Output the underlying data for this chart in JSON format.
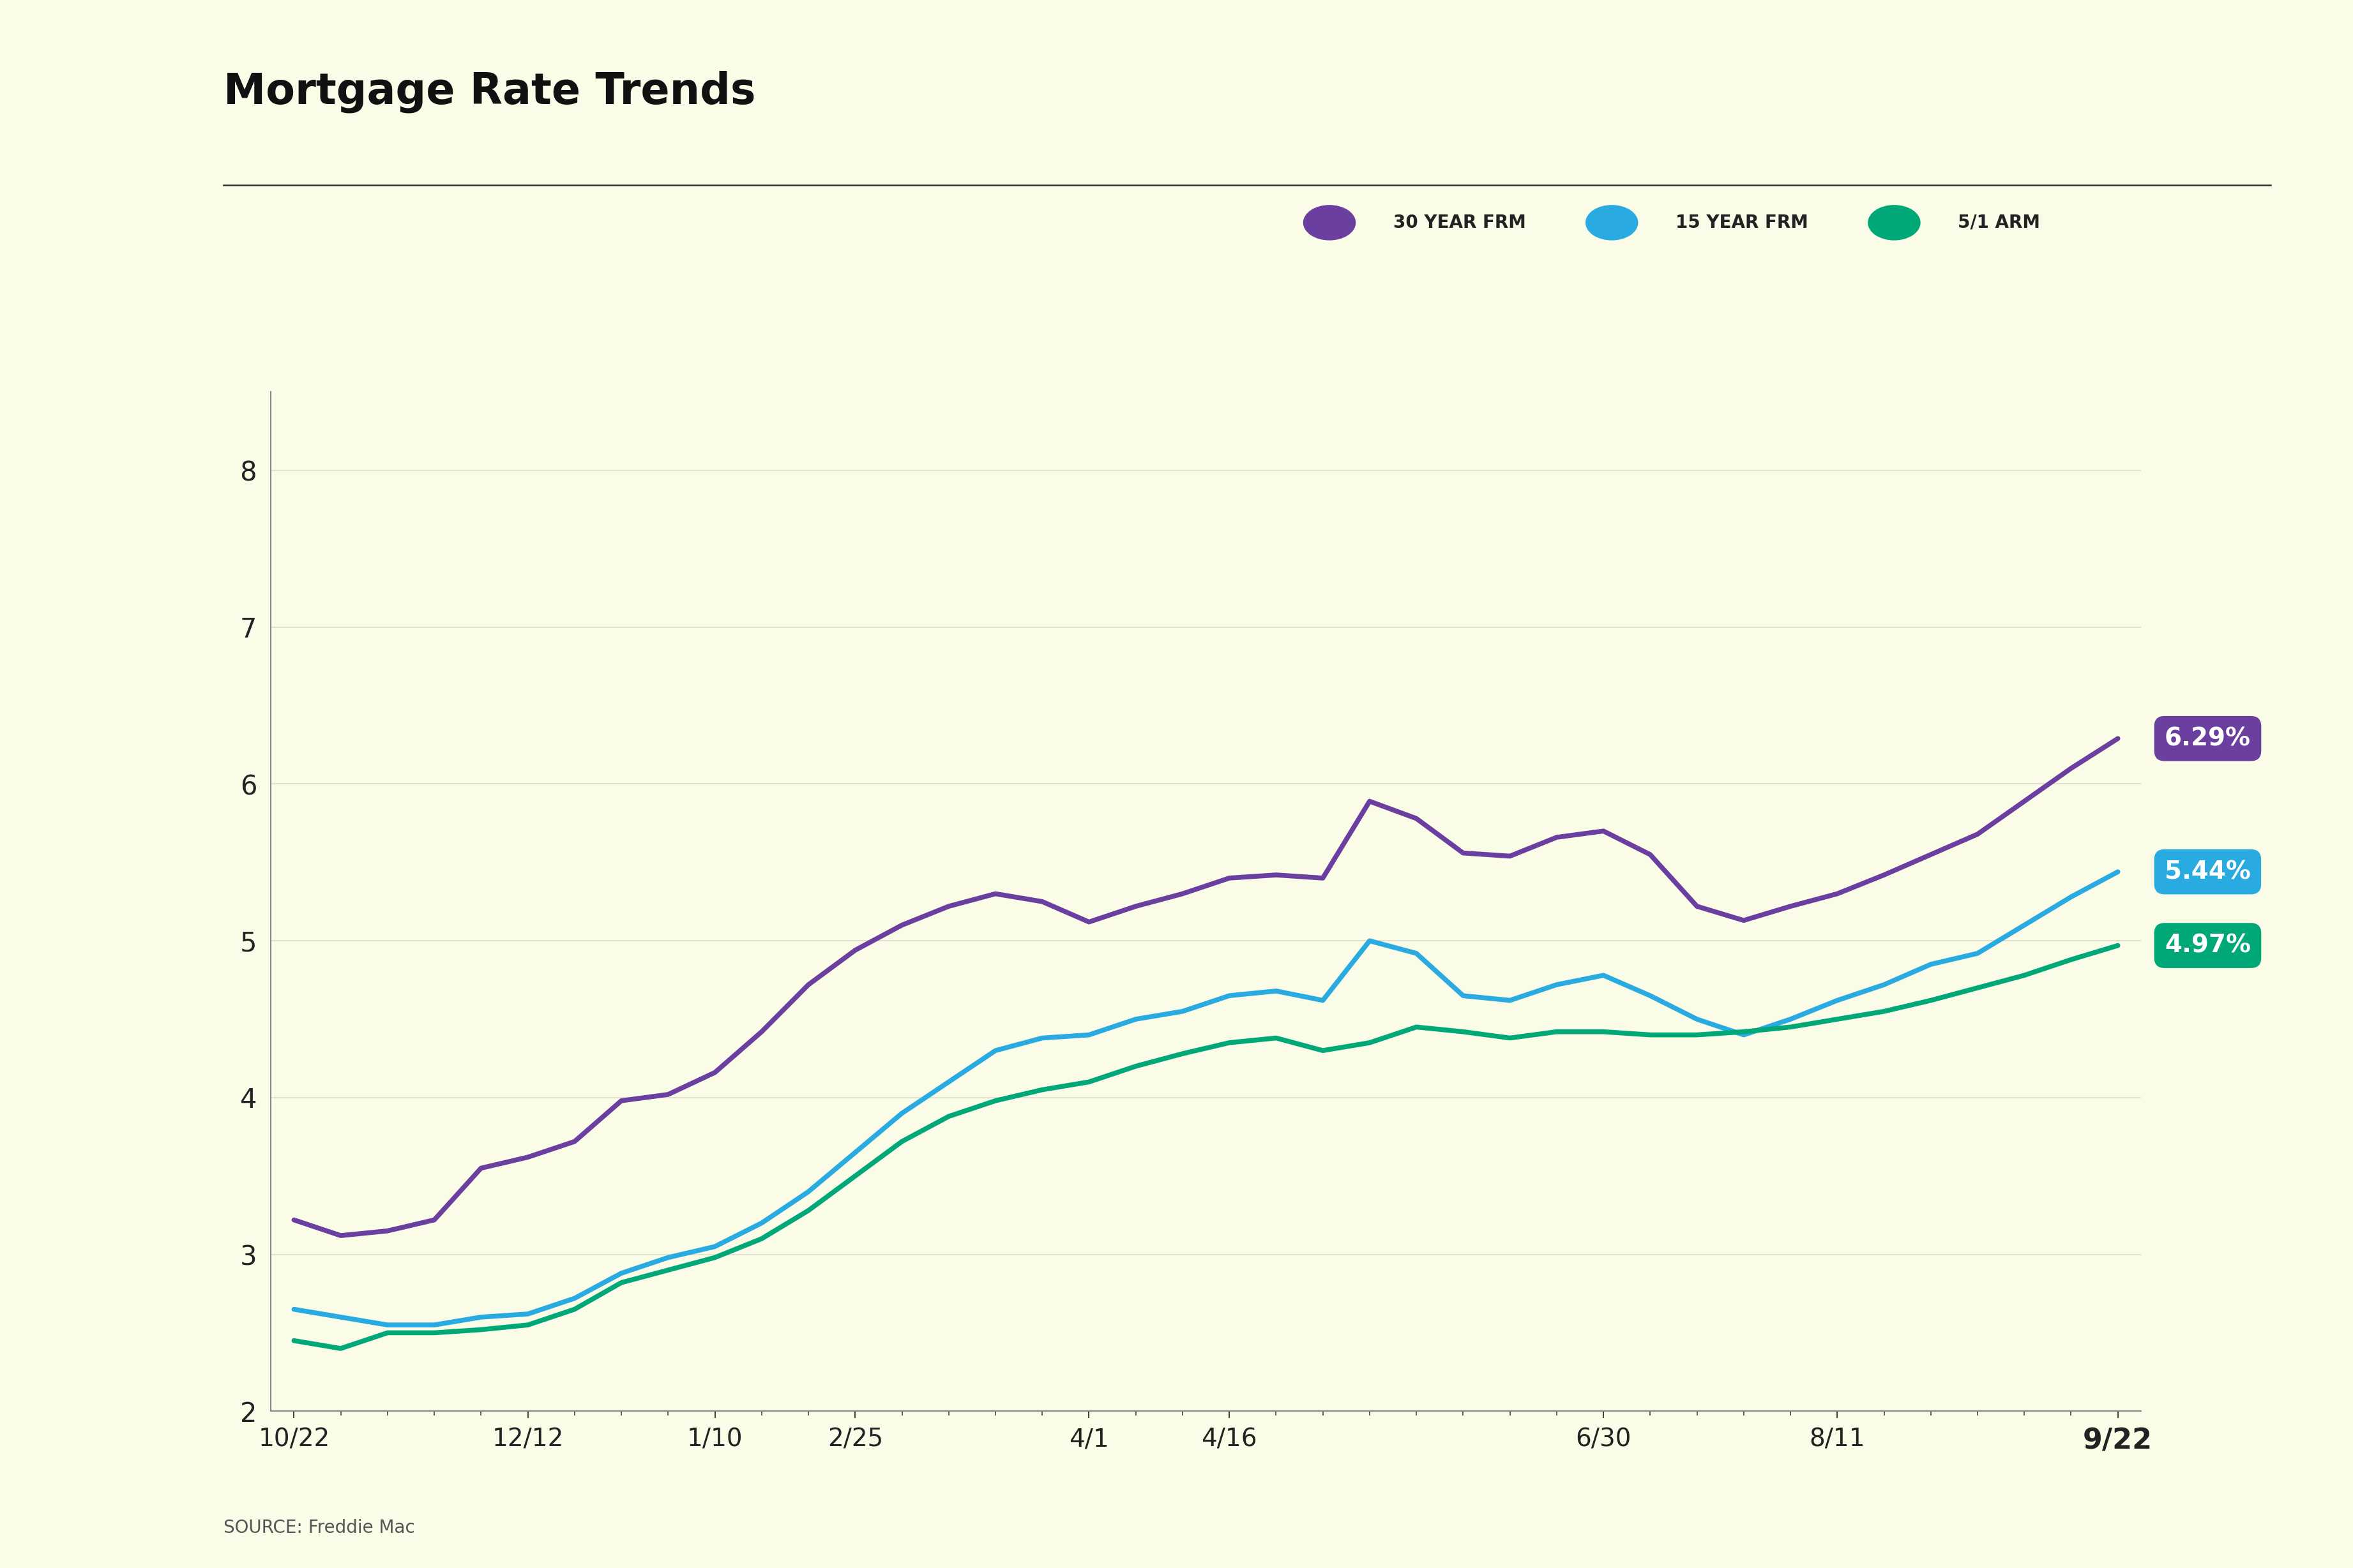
{
  "title": "Mortgage Rate Trends",
  "source": "SOURCE: Freddie Mac",
  "background_color": "#FAFCE8",
  "title_fontsize": 48,
  "title_fontweight": "bold",
  "ylim": [
    2.0,
    8.5
  ],
  "yticks": [
    2,
    3,
    4,
    5,
    6,
    7,
    8
  ],
  "series": [
    {
      "label": "30 YEAR FRM",
      "color": "#6B3FA0",
      "end_value": "6.29%",
      "data": [
        3.22,
        3.12,
        3.15,
        3.22,
        3.55,
        3.62,
        3.72,
        3.98,
        4.02,
        4.16,
        4.42,
        4.72,
        4.94,
        5.1,
        5.22,
        5.3,
        5.25,
        5.12,
        5.22,
        5.3,
        5.4,
        5.42,
        5.4,
        5.89,
        5.78,
        5.56,
        5.54,
        5.66,
        5.7,
        5.55,
        5.22,
        5.13,
        5.22,
        5.3,
        5.42,
        5.55,
        5.68,
        5.89,
        6.1,
        6.29
      ]
    },
    {
      "label": "15 YEAR FRM",
      "color": "#29ABE2",
      "end_value": "5.44%",
      "data": [
        2.65,
        2.6,
        2.55,
        2.55,
        2.6,
        2.62,
        2.72,
        2.88,
        2.98,
        3.05,
        3.2,
        3.4,
        3.65,
        3.9,
        4.1,
        4.3,
        4.38,
        4.4,
        4.5,
        4.55,
        4.65,
        4.68,
        4.62,
        5.0,
        4.92,
        4.65,
        4.62,
        4.72,
        4.78,
        4.65,
        4.5,
        4.4,
        4.5,
        4.62,
        4.72,
        4.85,
        4.92,
        5.1,
        5.28,
        5.44
      ]
    },
    {
      "label": "5/1 ARM",
      "color": "#00A878",
      "end_value": "4.97%",
      "data": [
        2.45,
        2.4,
        2.5,
        2.5,
        2.52,
        2.55,
        2.65,
        2.82,
        2.9,
        2.98,
        3.1,
        3.28,
        3.5,
        3.72,
        3.88,
        3.98,
        4.05,
        4.1,
        4.2,
        4.28,
        4.35,
        4.38,
        4.3,
        4.35,
        4.45,
        4.42,
        4.38,
        4.42,
        4.42,
        4.4,
        4.4,
        4.42,
        4.45,
        4.5,
        4.55,
        4.62,
        4.7,
        4.78,
        4.88,
        4.97
      ]
    }
  ],
  "legend_items": [
    {
      "label": "30 YEAR FRM",
      "color": "#6B3FA0"
    },
    {
      "label": "15 YEAR FRM",
      "color": "#29ABE2"
    },
    {
      "label": "5/1 ARM",
      "color": "#00A878"
    }
  ],
  "major_x_positions": [
    0,
    5,
    9,
    12,
    17,
    20,
    28,
    33,
    39
  ],
  "major_x_labels": [
    "10/22",
    "12/12",
    "1/10",
    "2/25",
    "4/1",
    "4/16",
    "6/30",
    "8/11",
    "9/22"
  ]
}
